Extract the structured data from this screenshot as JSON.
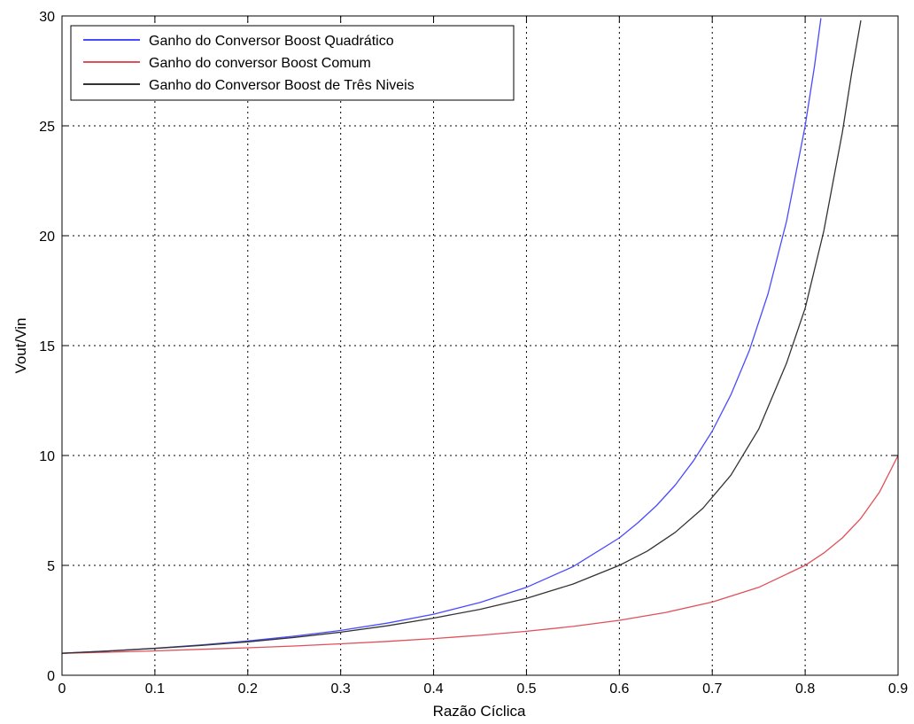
{
  "chart_data": {
    "type": "line",
    "title": "",
    "xlabel": "Razão Cíclica",
    "ylabel": "Vout/Vin",
    "xlim": [
      0,
      0.9
    ],
    "ylim": [
      0,
      30
    ],
    "xticks": [
      0,
      0.1,
      0.2,
      0.3,
      0.4,
      0.5,
      0.6,
      0.7,
      0.8,
      0.9
    ],
    "xtick_labels": [
      "0",
      "0.1",
      "0.2",
      "0.3",
      "0.4",
      "0.5",
      "0.6",
      "0.7",
      "0.8",
      "0.9"
    ],
    "yticks": [
      0,
      5,
      10,
      15,
      20,
      25,
      30
    ],
    "ytick_labels": [
      "0",
      "5",
      "10",
      "15",
      "20",
      "25",
      "30"
    ],
    "grid": true,
    "legend_position": "top-left",
    "series": [
      {
        "name": "Ganho do Conversor Boost Quadrático",
        "color": "#4a4aff",
        "x": [
          0,
          0.05,
          0.1,
          0.15,
          0.2,
          0.25,
          0.3,
          0.35,
          0.4,
          0.45,
          0.5,
          0.55,
          0.6,
          0.62,
          0.64,
          0.66,
          0.68,
          0.7,
          0.72,
          0.74,
          0.76,
          0.78,
          0.8,
          0.81,
          0.817
        ],
        "y": [
          1.0,
          1.11,
          1.23,
          1.38,
          1.56,
          1.78,
          2.04,
          2.37,
          2.78,
          3.31,
          4.0,
          4.94,
          6.25,
          6.94,
          7.72,
          8.65,
          9.77,
          11.11,
          12.76,
          14.79,
          17.36,
          20.66,
          25.0,
          27.7,
          29.9
        ]
      },
      {
        "name": "Ganho do conversor Boost Comum",
        "color": "#e0505a",
        "x": [
          0,
          0.05,
          0.1,
          0.15,
          0.2,
          0.25,
          0.3,
          0.35,
          0.4,
          0.45,
          0.5,
          0.55,
          0.6,
          0.65,
          0.7,
          0.75,
          0.8,
          0.82,
          0.84,
          0.86,
          0.88,
          0.9
        ],
        "y": [
          1.0,
          1.05,
          1.11,
          1.18,
          1.25,
          1.33,
          1.43,
          1.54,
          1.67,
          1.82,
          2.0,
          2.22,
          2.5,
          2.86,
          3.33,
          4.0,
          5.0,
          5.56,
          6.25,
          7.14,
          8.33,
          10.0
        ]
      },
      {
        "name": "Ganho do Conversor Boost de Três Niveis",
        "color": "#333333",
        "x": [
          0,
          0.05,
          0.1,
          0.15,
          0.2,
          0.25,
          0.3,
          0.35,
          0.4,
          0.45,
          0.5,
          0.55,
          0.6,
          0.63,
          0.66,
          0.69,
          0.72,
          0.75,
          0.78,
          0.8,
          0.82,
          0.84,
          0.85,
          0.86
        ],
        "y": [
          1.0,
          1.1,
          1.22,
          1.36,
          1.52,
          1.72,
          1.96,
          2.25,
          2.6,
          3.0,
          3.5,
          4.15,
          5.0,
          5.65,
          6.5,
          7.6,
          9.1,
          11.2,
          14.2,
          16.7,
          20.2,
          24.7,
          27.4,
          29.8
        ]
      }
    ]
  }
}
